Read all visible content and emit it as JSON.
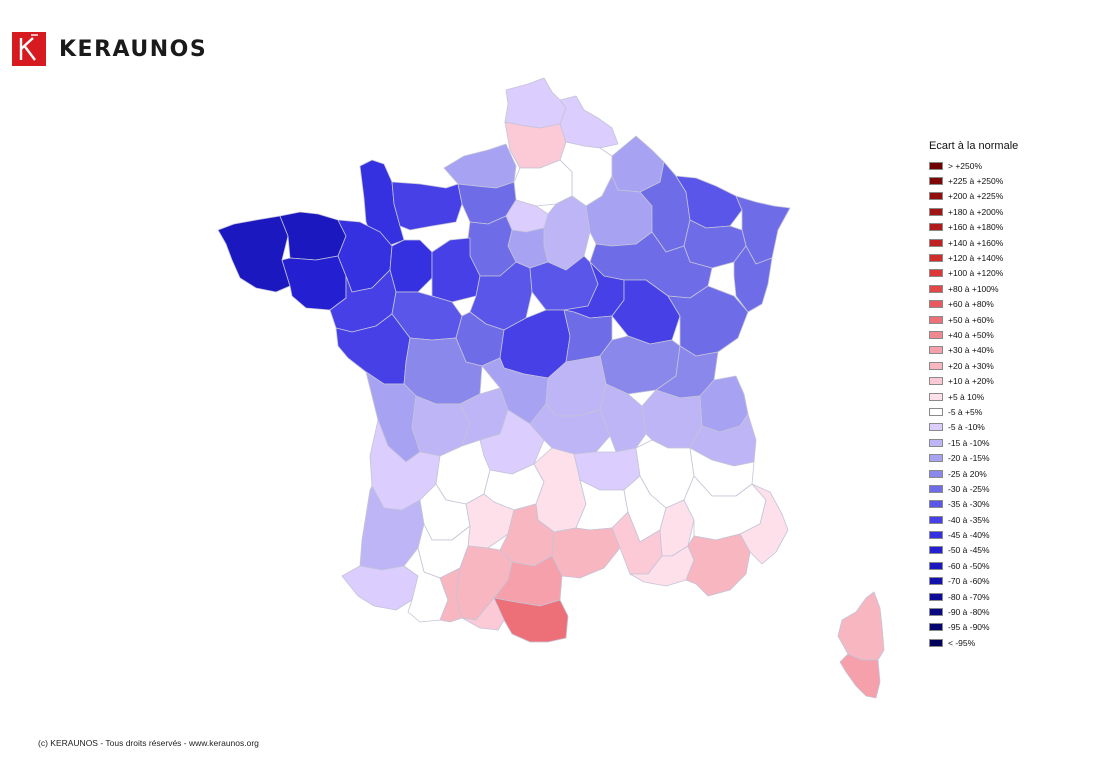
{
  "brand": {
    "name": "KERAUNOS",
    "logo_letter": "K",
    "logo_color": "#d71920",
    "icon": "keraunos-logo-icon"
  },
  "legend": {
    "title": "Ecart à la normale",
    "items": [
      {
        "label": "> +250%",
        "color": "#6e0000"
      },
      {
        "label": "+225 à +250%",
        "color": "#7d0707"
      },
      {
        "label": "+200 à +225%",
        "color": "#920e0e"
      },
      {
        "label": "+180 à +200%",
        "color": "#a11414"
      },
      {
        "label": "+160 à +180%",
        "color": "#b01a1a"
      },
      {
        "label": "+140 à +160%",
        "color": "#c02222"
      },
      {
        "label": "+120 à +140%",
        "color": "#d22d2d"
      },
      {
        "label": "+100 à +120%",
        "color": "#de3737"
      },
      {
        "label": "+80 à +100%",
        "color": "#e34646"
      },
      {
        "label": "+60 à +80%",
        "color": "#e85a5e"
      },
      {
        "label": "+50 à +60%",
        "color": "#ed7078"
      },
      {
        "label": "+40 à +50%",
        "color": "#f1878f"
      },
      {
        "label": "+30 à +40%",
        "color": "#f5a0aa"
      },
      {
        "label": "+20 à +30%",
        "color": "#f8b6c0"
      },
      {
        "label": "+10 à +20%",
        "color": "#fbcad6"
      },
      {
        "label": "+5 à 10%",
        "color": "#fde0ea"
      },
      {
        "label": "-5 à +5%",
        "color": "#ffffff"
      },
      {
        "label": "-5 à -10%",
        "color": "#dccdff"
      },
      {
        "label": "-15 à -10%",
        "color": "#bdb5f5"
      },
      {
        "label": "-20 à -15%",
        "color": "#a7a2f2"
      },
      {
        "label": "-25 à 20%",
        "color": "#8b88ec"
      },
      {
        "label": "-30 à -25%",
        "color": "#6f6ce8"
      },
      {
        "label": "-35 à -30%",
        "color": "#5a56ea"
      },
      {
        "label": "-40 à -35%",
        "color": "#4640e6"
      },
      {
        "label": "-45 à -40%",
        "color": "#3530e0"
      },
      {
        "label": "-50 à -45%",
        "color": "#2420d2"
      },
      {
        "label": "-60 à -50%",
        "color": "#1b18c0"
      },
      {
        "label": "-70 à -60%",
        "color": "#1412ac"
      },
      {
        "label": "-80 à -70%",
        "color": "#0d0c98"
      },
      {
        "label": "-90 à -80%",
        "color": "#080882"
      },
      {
        "label": "-95 à -90%",
        "color": "#04046e"
      },
      {
        "label": "< -95%",
        "color": "#00005a"
      }
    ]
  },
  "copyright": "(c) KERAUNOS - Tous droits réservés - www.keraunos.org"
}
